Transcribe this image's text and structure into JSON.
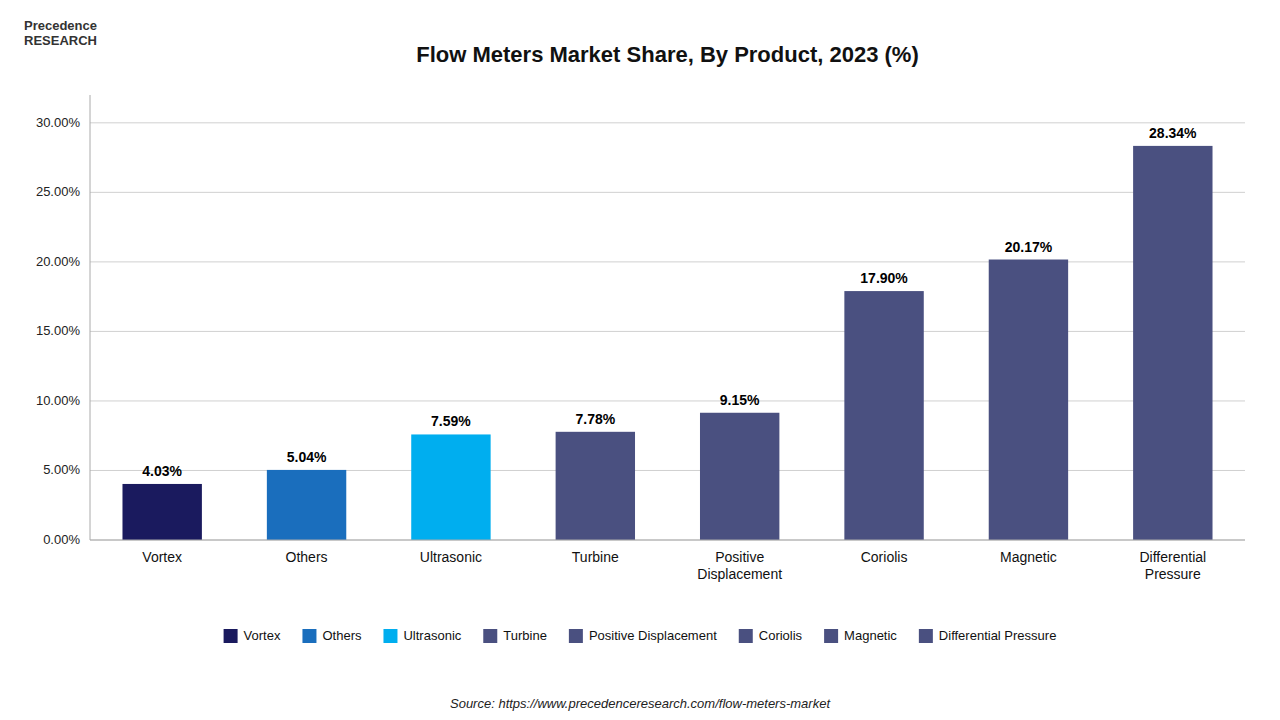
{
  "chart_data": {
    "type": "bar",
    "title": "Flow Meters Market Share, By Product, 2023 (%)",
    "categories": [
      "Vortex",
      "Others",
      "Ultrasonic",
      "Turbine",
      "Positive\nDisplacement",
      "Coriolis",
      "Magnetic",
      "Differential\nPressure"
    ],
    "values": [
      4.03,
      5.04,
      7.59,
      7.78,
      9.15,
      17.9,
      20.17,
      28.34
    ],
    "value_labels": [
      "4.03%",
      "5.04%",
      "7.59%",
      "7.78%",
      "9.15%",
      "17.90%",
      "20.17%",
      "28.34%"
    ],
    "colors": [
      "#1a1a5e",
      "#1a6ebd",
      "#00aeef",
      "#4a5080",
      "#4a5080",
      "#4a5080",
      "#4a5080",
      "#4a5080"
    ],
    "legend_labels": [
      "Vortex",
      "Others",
      "Ultrasonic",
      "Turbine",
      "Positive Displacement",
      "Coriolis",
      "Magnetic",
      "Differential Pressure"
    ],
    "legend": "bottom",
    "ylim": [
      0,
      32
    ],
    "yticks": [
      {
        "value": 0,
        "label": "0.00%"
      },
      {
        "value": 5,
        "label": "5.00%"
      },
      {
        "value": 10,
        "label": "10.00%"
      },
      {
        "value": 15,
        "label": "15.00%"
      },
      {
        "value": 20,
        "label": "20.00%"
      },
      {
        "value": 25,
        "label": "25.00%"
      },
      {
        "value": 30,
        "label": "30.00%"
      }
    ],
    "grid": true,
    "data_labels": true,
    "annotations": [
      "Precedence\nRESEARCH",
      "Source: https://www.precedenceresearch.com/flow-meters-market"
    ]
  }
}
